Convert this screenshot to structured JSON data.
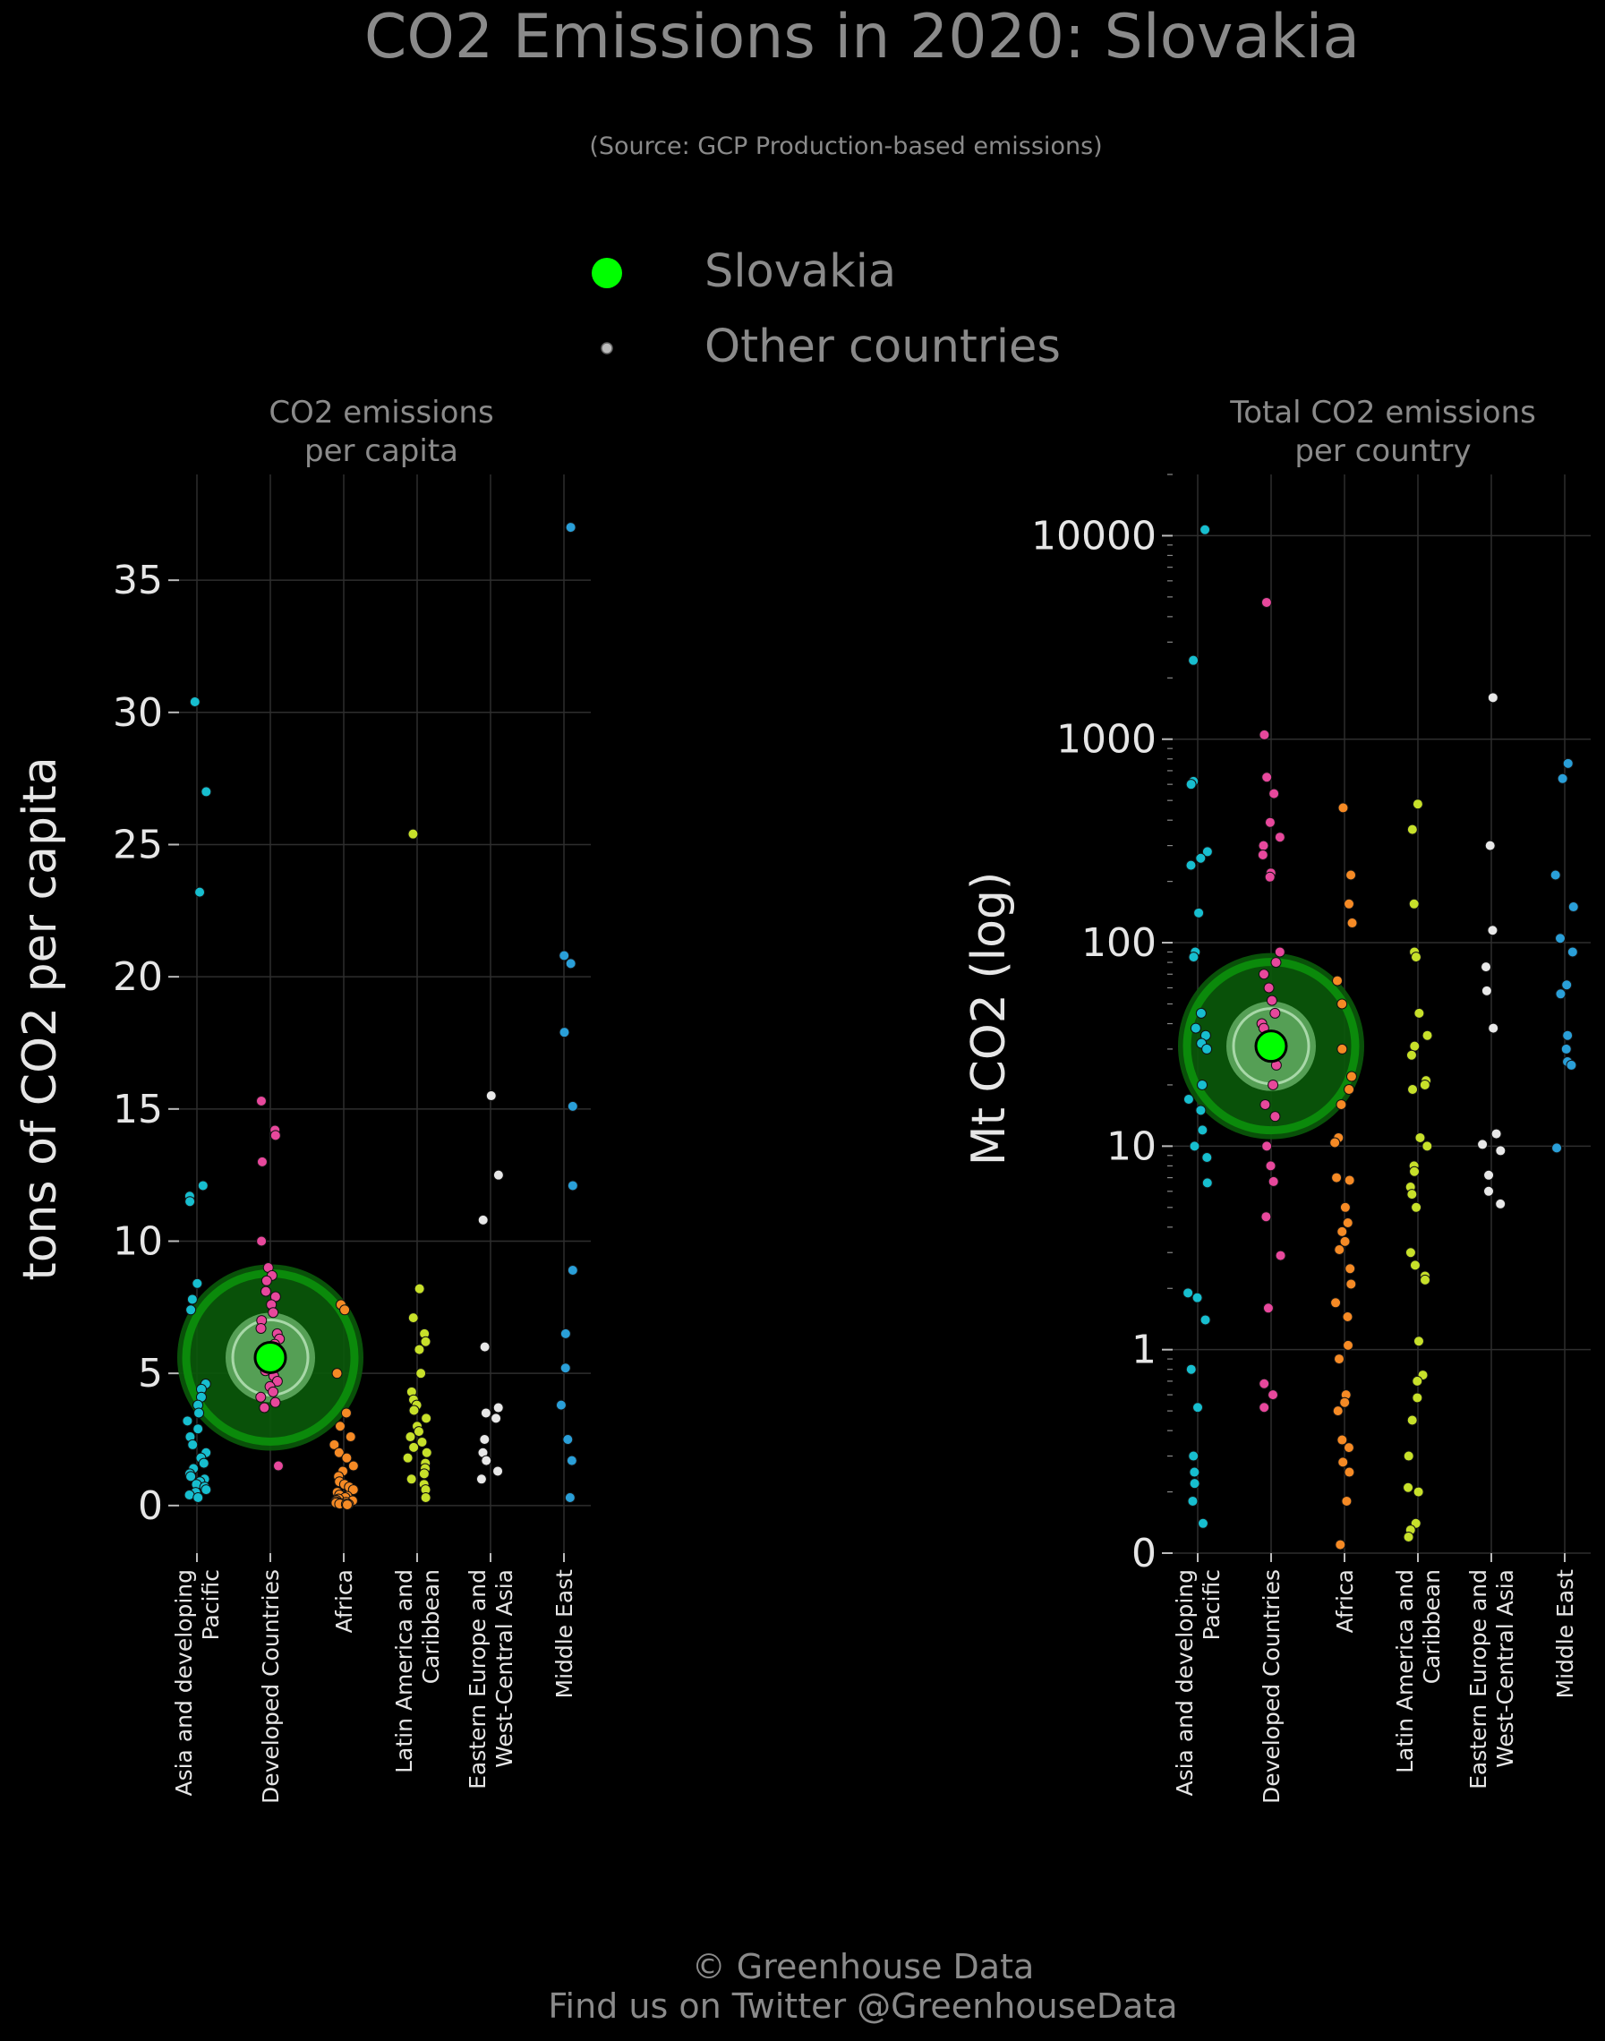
{
  "header": {
    "title": "CO2 Emissions in 2020: Slovakia",
    "subtitle": "(Source: GCP Production-based emissions)"
  },
  "legend": {
    "highlight_label": "Slovakia",
    "other_label": "Other countries",
    "placement": "top-center"
  },
  "footer": {
    "line1": "© Greenhouse Data",
    "line2": "Find us on Twitter @GreenhouseData"
  },
  "colors": {
    "background": "#000000",
    "highlight": "#00ff00",
    "highlight_ring": "#0b8a0b",
    "grid": "#2e2e2e",
    "asia": "#17becf",
    "developed": "#e7489c",
    "africa": "#f58a25",
    "latam": "#c7e02a",
    "eeca": "#e8e8e8",
    "mideast": "#2a9fd8"
  },
  "chart_data": [
    {
      "type": "scatter",
      "panel_title_line1": "CO2 emissions",
      "panel_title_line2": "per capita",
      "ylabel": "tons of CO2 per capita",
      "ylim": [
        -1.8,
        39
      ],
      "yticks": [
        0,
        5,
        10,
        15,
        20,
        25,
        30,
        35
      ],
      "ytick_labels": [
        "0",
        "5",
        "10",
        "15",
        "20",
        "25",
        "30",
        "35"
      ],
      "grid": true,
      "categories": [
        [
          "Asia and developing",
          "Pacific"
        ],
        [
          "Developed Countries"
        ],
        [
          "Africa"
        ],
        [
          "Latin America and",
          "Caribbean"
        ],
        [
          "Eastern Europe and",
          "West-Central Asia"
        ],
        [
          "Middle East"
        ]
      ],
      "highlight": {
        "name": "Slovakia",
        "category": 1,
        "value": 5.6
      },
      "series": [
        {
          "name": "Asia and developing Pacific",
          "values": [
            30.4,
            27.0,
            23.2,
            12.1,
            11.7,
            11.5,
            8.4,
            7.8,
            7.4,
            4.6,
            4.4,
            4.1,
            3.8,
            3.5,
            3.2,
            2.9,
            2.6,
            2.3,
            2.0,
            1.8,
            1.6,
            1.4,
            1.2,
            1.1,
            1.0,
            0.9,
            0.8,
            0.7,
            0.6,
            0.5,
            0.4,
            0.3
          ]
        },
        {
          "name": "Developed Countries",
          "values": [
            15.3,
            14.2,
            14.0,
            13.0,
            10.0,
            9.0,
            8.7,
            8.5,
            8.1,
            7.9,
            7.6,
            7.3,
            7.0,
            6.7,
            6.5,
            6.3,
            6.1,
            5.9,
            5.5,
            5.3,
            5.1,
            4.9,
            4.7,
            4.5,
            4.3,
            4.1,
            3.9,
            3.7,
            1.5
          ]
        },
        {
          "name": "Africa",
          "values": [
            7.6,
            7.4,
            5.0,
            3.5,
            3.0,
            2.6,
            2.3,
            2.0,
            1.8,
            1.5,
            1.3,
            1.1,
            0.9,
            0.8,
            0.7,
            0.6,
            0.5,
            0.4,
            0.35,
            0.3,
            0.25,
            0.2,
            0.18,
            0.15,
            0.12,
            0.1,
            0.08,
            0.06,
            0.05,
            0.04,
            0.03
          ]
        },
        {
          "name": "Latin America and Caribbean",
          "values": [
            25.4,
            8.2,
            7.1,
            6.5,
            6.2,
            5.9,
            5.0,
            4.3,
            4.0,
            3.8,
            3.6,
            3.3,
            3.0,
            2.8,
            2.6,
            2.4,
            2.2,
            2.0,
            1.8,
            1.6,
            1.4,
            1.2,
            1.0,
            0.8,
            0.6,
            0.3
          ]
        },
        {
          "name": "Eastern Europe and West-Central Asia",
          "values": [
            15.5,
            12.5,
            10.8,
            6.0,
            3.7,
            3.5,
            3.3,
            2.5,
            2.0,
            1.7,
            1.3,
            1.0
          ]
        },
        {
          "name": "Middle East",
          "values": [
            37.0,
            20.8,
            20.5,
            17.9,
            15.1,
            12.1,
            8.9,
            6.5,
            5.2,
            3.8,
            2.5,
            1.7,
            0.3
          ]
        }
      ]
    },
    {
      "type": "scatter",
      "panel_title_line1": "Total CO2 emissions",
      "panel_title_line2": "per country",
      "ylabel": "Mt CO2 (log)",
      "yscale": "log",
      "ylim": [
        0.1,
        20000
      ],
      "yticks": [
        0.1,
        1,
        10,
        100,
        1000,
        10000
      ],
      "ytick_labels": [
        "0",
        "1",
        "10",
        "100",
        "1000",
        "10000"
      ],
      "grid": true,
      "categories": [
        [
          "Asia and developing",
          "Pacific"
        ],
        [
          "Developed Countries"
        ],
        [
          "Africa"
        ],
        [
          "Latin America and",
          "Caribbean"
        ],
        [
          "Eastern Europe and",
          "West-Central Asia"
        ],
        [
          "Middle East"
        ]
      ],
      "highlight": {
        "name": "Slovakia",
        "category": 1,
        "value": 31
      },
      "series": [
        {
          "name": "Asia and developing Pacific",
          "values": [
            10700,
            2440,
            620,
            600,
            280,
            260,
            240,
            140,
            90,
            85,
            45,
            38,
            35,
            32,
            30,
            20,
            17,
            15,
            12,
            10,
            8.8,
            6.6,
            1.9,
            1.8,
            1.4,
            0.8,
            0.52,
            0.3,
            0.25,
            0.22,
            0.18,
            0.14
          ]
        },
        {
          "name": "Developed Countries",
          "values": [
            4700,
            1050,
            650,
            540,
            390,
            330,
            300,
            270,
            220,
            210,
            90,
            80,
            70,
            60,
            52,
            45,
            40,
            38,
            35,
            25,
            20,
            16,
            14,
            10,
            8,
            6.7,
            4.5,
            2.9,
            1.6,
            0.68,
            0.6,
            0.52
          ]
        },
        {
          "name": "Africa",
          "values": [
            460,
            215,
            155,
            125,
            65,
            50,
            30,
            22,
            19,
            16,
            11,
            10.4,
            7,
            6.8,
            5,
            4.2,
            3.8,
            3.4,
            3.1,
            2.5,
            2.1,
            1.7,
            1.45,
            1.05,
            0.9,
            0.6,
            0.55,
            0.5,
            0.36,
            0.33,
            0.28,
            0.25,
            0.18,
            0.11
          ]
        },
        {
          "name": "Latin America and Caribbean",
          "values": [
            480,
            360,
            155,
            90,
            85,
            45,
            35,
            31,
            28,
            21,
            20,
            19,
            11,
            10,
            8,
            7.5,
            6.3,
            5.8,
            5,
            3,
            2.6,
            2.3,
            2.2,
            1.1,
            0.75,
            0.7,
            0.58,
            0.45,
            0.3,
            0.21,
            0.2,
            0.14,
            0.13,
            0.12
          ]
        },
        {
          "name": "Eastern Europe and West-Central Asia",
          "values": [
            1600,
            300,
            115,
            76,
            58,
            38,
            11.5,
            10.2,
            9.5,
            7.2,
            6,
            5.2
          ]
        },
        {
          "name": "Middle East",
          "values": [
            760,
            640,
            215,
            150,
            105,
            90,
            62,
            56,
            35,
            30,
            26,
            25,
            9.8
          ]
        }
      ]
    }
  ]
}
